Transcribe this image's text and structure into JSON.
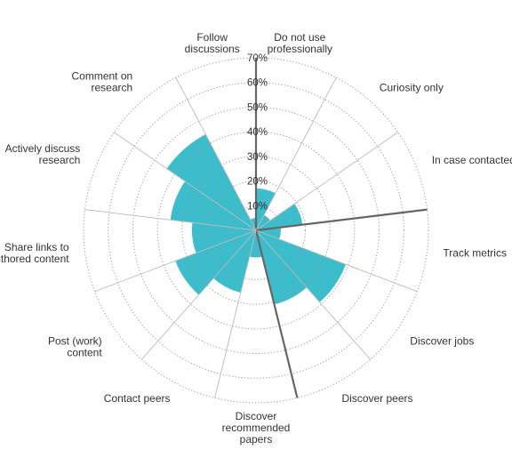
{
  "chart_data": {
    "type": "polar-area",
    "title": "",
    "categories": [
      [
        "Do not use",
        "professionally"
      ],
      [
        "Curiosity only"
      ],
      [
        "In case contacted"
      ],
      [
        "Track metrics"
      ],
      [
        "Discover jobs"
      ],
      [
        "Discover peers"
      ],
      [
        "Discover",
        "recommended",
        "papers"
      ],
      [
        "Contact peers"
      ],
      [
        "Post (work)",
        "content"
      ],
      [
        "Share links to",
        "authored content"
      ],
      [
        "Actively discuss",
        "research"
      ],
      [
        "Comment on",
        "research"
      ],
      [
        "Follow",
        "discussions"
      ]
    ],
    "values": [
      17,
      7,
      19,
      10,
      39,
      31,
      11,
      26,
      35,
      26,
      35,
      44,
      5
    ],
    "rlim": [
      0,
      70
    ],
    "ticks": [
      "10%",
      "20%",
      "30%",
      "40%",
      "50%",
      "60%",
      "70%"
    ],
    "tick_values": [
      10,
      20,
      30,
      40,
      50,
      60,
      70
    ],
    "grid": true,
    "emphasized_spokes": [
      0,
      3,
      6
    ],
    "colors": {
      "fill": "#3dbdcb",
      "grid": "#999999",
      "spoke": "#bbbbbb",
      "spoke_emphasis": "#666666",
      "text": "#333333"
    }
  }
}
